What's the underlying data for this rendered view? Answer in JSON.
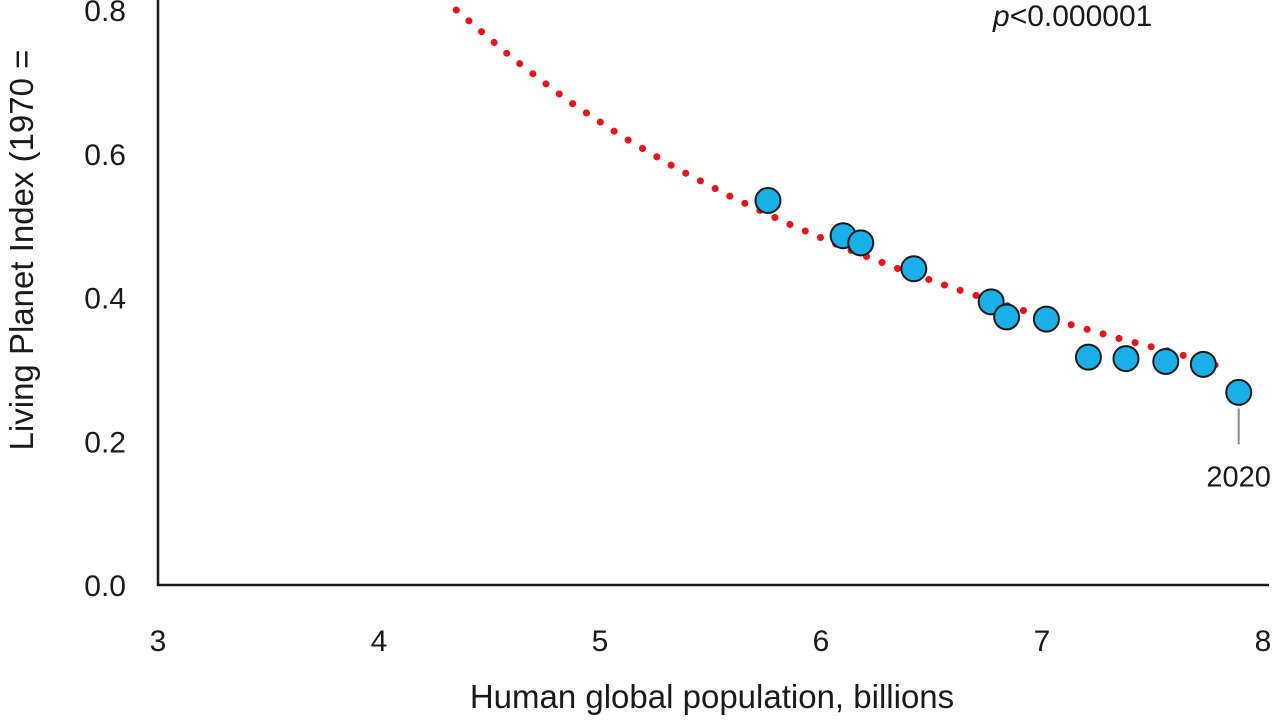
{
  "chart_data": {
    "type": "scatter",
    "xlabel": "Human global population, billions",
    "ylabel": "Living Planet Index (1970 =",
    "xlim": [
      3,
      8
    ],
    "ylim": [
      0,
      0.8
    ],
    "x_ticks": [
      "3",
      "4",
      "5",
      "6",
      "7",
      "8"
    ],
    "y_ticks": [
      "0.0",
      "0.2",
      "0.4",
      "0.6",
      "0.8"
    ],
    "p_value": {
      "prefix": "p",
      "rest": "<0.000001"
    },
    "points": [
      {
        "x": 5.76,
        "y": 0.535
      },
      {
        "x": 6.1,
        "y": 0.486
      },
      {
        "x": 6.18,
        "y": 0.476
      },
      {
        "x": 6.42,
        "y": 0.44
      },
      {
        "x": 6.77,
        "y": 0.394
      },
      {
        "x": 6.84,
        "y": 0.373
      },
      {
        "x": 7.02,
        "y": 0.37
      },
      {
        "x": 7.21,
        "y": 0.317
      },
      {
        "x": 7.38,
        "y": 0.315
      },
      {
        "x": 7.56,
        "y": 0.311
      },
      {
        "x": 7.73,
        "y": 0.307
      },
      {
        "x": 7.89,
        "y": 0.268
      }
    ],
    "trendline": {
      "style": "dotted",
      "color": "#e8141c",
      "x": [
        4.35,
        4.6,
        4.85,
        5.1,
        5.35,
        5.6,
        5.85,
        6.1,
        6.35,
        6.6,
        6.85,
        7.1,
        7.35,
        7.6,
        7.85
      ],
      "y": [
        0.8,
        0.734,
        0.675,
        0.624,
        0.579,
        0.539,
        0.503,
        0.47,
        0.44,
        0.413,
        0.388,
        0.365,
        0.343,
        0.323,
        0.3
      ]
    },
    "annotation": {
      "label": "2020",
      "x": 7.89,
      "y": 0.268
    },
    "colors": {
      "point_fill": "#1aafe6",
      "point_stroke": "#1a1a1a",
      "trend": "#e8141c",
      "leader": "#8a8a8a"
    }
  }
}
